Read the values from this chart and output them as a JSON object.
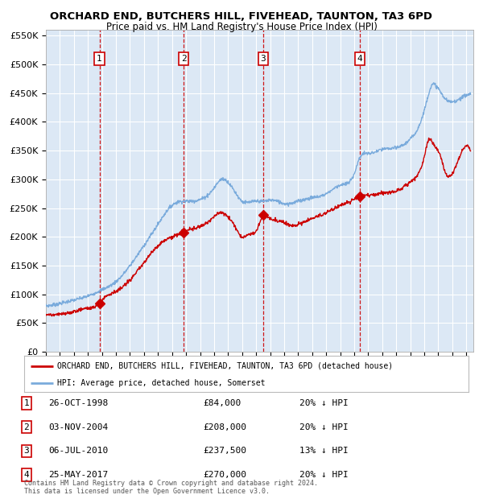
{
  "title": "ORCHARD END, BUTCHERS HILL, FIVEHEAD, TAUNTON, TA3 6PD",
  "subtitle": "Price paid vs. HM Land Registry's House Price Index (HPI)",
  "ylim": [
    0,
    560000
  ],
  "yticks": [
    0,
    50000,
    100000,
    150000,
    200000,
    250000,
    300000,
    350000,
    400000,
    450000,
    500000,
    550000
  ],
  "ytick_labels": [
    "£0",
    "£50K",
    "£100K",
    "£150K",
    "£200K",
    "£250K",
    "£300K",
    "£350K",
    "£400K",
    "£450K",
    "£500K",
    "£550K"
  ],
  "xlim_start": 1995.0,
  "xlim_end": 2025.5,
  "background_color": "#ffffff",
  "plot_bg_color": "#dce8f5",
  "grid_color": "#ffffff",
  "sale_dates": [
    1998.82,
    2004.84,
    2010.51,
    2017.39
  ],
  "sale_prices": [
    84000,
    208000,
    237500,
    270000
  ],
  "sale_labels": [
    "1",
    "2",
    "3",
    "4"
  ],
  "vline_color": "#cc0000",
  "sale_marker_color": "#cc0000",
  "hpi_line_color": "#7aabdc",
  "price_line_color": "#cc0000",
  "legend_label_price": "ORCHARD END, BUTCHERS HILL, FIVEHEAD, TAUNTON, TA3 6PD (detached house)",
  "legend_label_hpi": "HPI: Average price, detached house, Somerset",
  "table_rows": [
    [
      "1",
      "26-OCT-1998",
      "£84,000",
      "20% ↓ HPI"
    ],
    [
      "2",
      "03-NOV-2004",
      "£208,000",
      "20% ↓ HPI"
    ],
    [
      "3",
      "06-JUL-2010",
      "£237,500",
      "13% ↓ HPI"
    ],
    [
      "4",
      "25-MAY-2017",
      "£270,000",
      "20% ↓ HPI"
    ]
  ],
  "footer": "Contains HM Land Registry data © Crown copyright and database right 2024.\nThis data is licensed under the Open Government Licence v3.0."
}
